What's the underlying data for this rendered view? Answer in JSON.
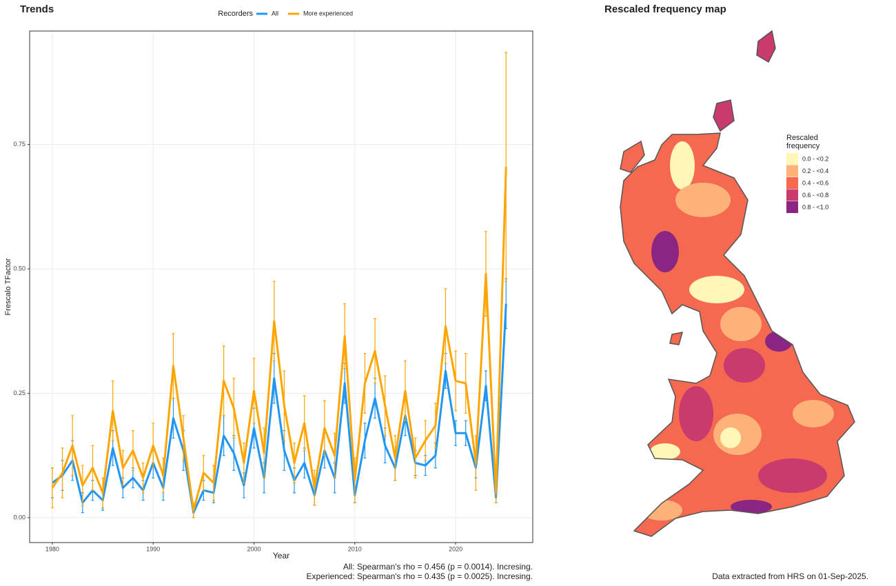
{
  "chart_data": {
    "type": "line",
    "title": "Trends",
    "legend_title": "Recorders",
    "x_label": "Year",
    "y_label": "Frescalo TFactor",
    "x": [
      1980,
      1981,
      1982,
      1983,
      1984,
      1985,
      1986,
      1987,
      1988,
      1989,
      1990,
      1991,
      1992,
      1993,
      1994,
      1995,
      1996,
      1997,
      1998,
      1999,
      2000,
      2001,
      2002,
      2003,
      2004,
      2005,
      2006,
      2007,
      2008,
      2009,
      2010,
      2011,
      2012,
      2013,
      2014,
      2015,
      2016,
      2017,
      2018,
      2019,
      2020,
      2021,
      2022,
      2023,
      2024,
      2025
    ],
    "series": [
      {
        "name": "All",
        "color": "#2196f3",
        "values": [
          0.07,
          0.085,
          0.115,
          0.03,
          0.055,
          0.035,
          0.14,
          0.06,
          0.08,
          0.055,
          0.11,
          0.06,
          0.2,
          0.135,
          0.01,
          0.055,
          0.05,
          0.165,
          0.13,
          0.065,
          0.18,
          0.08,
          0.28,
          0.135,
          0.075,
          0.11,
          0.045,
          0.135,
          0.08,
          0.27,
          0.045,
          0.155,
          0.24,
          0.145,
          0.1,
          0.205,
          0.11,
          0.105,
          0.125,
          0.295,
          0.17,
          0.17,
          0.1,
          0.265,
          0.04,
          0.43
        ],
        "errors": [
          0.03,
          0.03,
          0.04,
          0.02,
          0.02,
          0.02,
          0.035,
          0.02,
          0.02,
          0.02,
          0.03,
          0.025,
          0.04,
          0.04,
          0.01,
          0.02,
          0.02,
          0.04,
          0.035,
          0.025,
          0.04,
          0.03,
          0.05,
          0.04,
          0.025,
          0.03,
          0.02,
          0.035,
          0.03,
          0.04,
          0.015,
          0.035,
          0.04,
          0.035,
          0.025,
          0.04,
          0.025,
          0.02,
          0.025,
          0.035,
          0.025,
          0.025,
          0.02,
          0.03,
          0.01,
          0.05
        ]
      },
      {
        "name": "More experienced",
        "color": "#ffa500",
        "values": [
          0.06,
          0.09,
          0.145,
          0.065,
          0.1,
          0.05,
          0.215,
          0.1,
          0.135,
          0.08,
          0.145,
          0.085,
          0.305,
          0.16,
          0.015,
          0.09,
          0.07,
          0.275,
          0.22,
          0.11,
          0.255,
          0.13,
          0.395,
          0.225,
          0.11,
          0.19,
          0.06,
          0.18,
          0.125,
          0.365,
          0.075,
          0.27,
          0.335,
          0.225,
          0.12,
          0.255,
          0.12,
          0.155,
          0.185,
          0.385,
          0.275,
          0.27,
          0.11,
          0.49,
          0.05,
          0.705
        ],
        "errors": [
          0.04,
          0.05,
          0.06,
          0.04,
          0.045,
          0.03,
          0.06,
          0.035,
          0.04,
          0.03,
          0.045,
          0.035,
          0.065,
          0.045,
          0.015,
          0.035,
          0.035,
          0.07,
          0.06,
          0.04,
          0.065,
          0.05,
          0.08,
          0.07,
          0.04,
          0.055,
          0.035,
          0.055,
          0.045,
          0.065,
          0.045,
          0.06,
          0.065,
          0.06,
          0.045,
          0.06,
          0.04,
          0.04,
          0.045,
          0.075,
          0.06,
          0.06,
          0.055,
          0.085,
          0.02,
          0.23
        ]
      }
    ],
    "xlim": [
      1977.75,
      2027.65
    ],
    "xticks": [
      1980,
      1990,
      2000,
      2010,
      2020
    ],
    "ylim": [
      -0.05,
      0.978
    ],
    "yticks": [
      {
        "value": 0,
        "label": "0.00"
      },
      {
        "value": 0.25,
        "label": "0.25"
      },
      {
        "value": 0.5,
        "label": "0.50"
      },
      {
        "value": 0.75,
        "label": "0.75"
      }
    ],
    "grid": true,
    "annotations": [
      "All: Spearman's rho = 0.456 (p = 0.0014). Incresing.",
      "Experienced: Spearman's rho = 0.435 (p = 0.0025). Incresing."
    ]
  },
  "map": {
    "title": "Rescaled frequency map",
    "legend_title": [
      "Rescaled",
      "frequency"
    ],
    "legend": [
      {
        "label": "0.0 - <0.2",
        "color": "#fff7b8"
      },
      {
        "label": "0.2 - <0.4",
        "color": "#fdb27a"
      },
      {
        "label": "0.4 - <0.6",
        "color": "#f4694f"
      },
      {
        "label": "0.6 - <0.8",
        "color": "#c93a6e"
      },
      {
        "label": "0.8 - <1.0",
        "color": "#8a2584"
      }
    ],
    "footer": "Data extracted from HRS on 01-Sep-2025."
  }
}
